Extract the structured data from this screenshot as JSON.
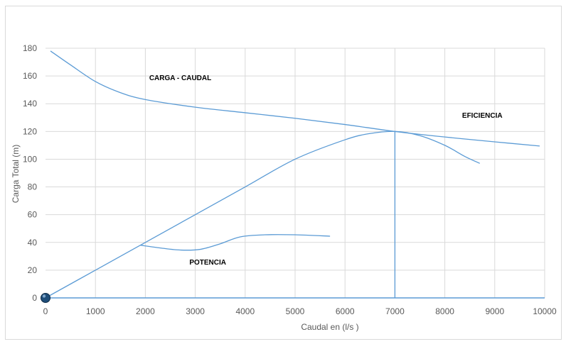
{
  "chart_data": {
    "type": "line",
    "title": "",
    "xlabel": "Caudal en (l/s )",
    "ylabel": "Carga Total  (m)",
    "xlim": [
      0,
      10000
    ],
    "ylim": [
      0,
      180
    ],
    "xticks": [
      0,
      1000,
      2000,
      3000,
      4000,
      5000,
      6000,
      7000,
      8000,
      9000,
      10000
    ],
    "yticks": [
      0,
      20,
      40,
      60,
      80,
      100,
      120,
      140,
      160,
      180
    ],
    "grid": true,
    "legend": "none",
    "series_color": "#5B9BD5",
    "series": [
      {
        "label_ref": "carga",
        "points": [
          [
            100,
            178
          ],
          [
            500,
            168
          ],
          [
            1000,
            156
          ],
          [
            1500,
            148
          ],
          [
            2000,
            143
          ],
          [
            3000,
            137.5
          ],
          [
            4000,
            133.5
          ],
          [
            5000,
            129.5
          ],
          [
            6000,
            125
          ],
          [
            7000,
            120
          ],
          [
            8000,
            116
          ],
          [
            9000,
            112.5
          ],
          [
            9900,
            109.5
          ]
        ]
      },
      {
        "label_ref": "eficiencia",
        "points": [
          [
            0,
            0
          ],
          [
            1000,
            20
          ],
          [
            2000,
            40
          ],
          [
            3000,
            60
          ],
          [
            4000,
            80
          ],
          [
            5000,
            100
          ],
          [
            6000,
            114
          ],
          [
            6500,
            118.5
          ],
          [
            7000,
            120
          ],
          [
            7500,
            117
          ],
          [
            8000,
            110
          ],
          [
            8400,
            102
          ],
          [
            8700,
            97
          ]
        ]
      },
      {
        "label_ref": "potencia",
        "points": [
          [
            1900,
            38
          ],
          [
            2300,
            36
          ],
          [
            2700,
            34.5
          ],
          [
            3100,
            35
          ],
          [
            3500,
            39
          ],
          [
            3900,
            44
          ],
          [
            4400,
            45.5
          ],
          [
            5000,
            45.5
          ],
          [
            5700,
            44.5
          ]
        ]
      },
      {
        "label_ref": "vertical",
        "points": [
          [
            7000,
            0
          ],
          [
            7000,
            120
          ]
        ]
      }
    ],
    "marker": {
      "x": 0,
      "y": 0,
      "color": "#1F4E79"
    },
    "annotations": [
      {
        "id": "carga",
        "text": "CARGA - CAUDAL",
        "x": 2700,
        "y": 157
      },
      {
        "id": "eficiencia",
        "text": "EFICIENCIA",
        "x": 8750,
        "y": 130
      },
      {
        "id": "potencia",
        "text": "POTENCIA",
        "x": 3250,
        "y": 24
      }
    ]
  }
}
